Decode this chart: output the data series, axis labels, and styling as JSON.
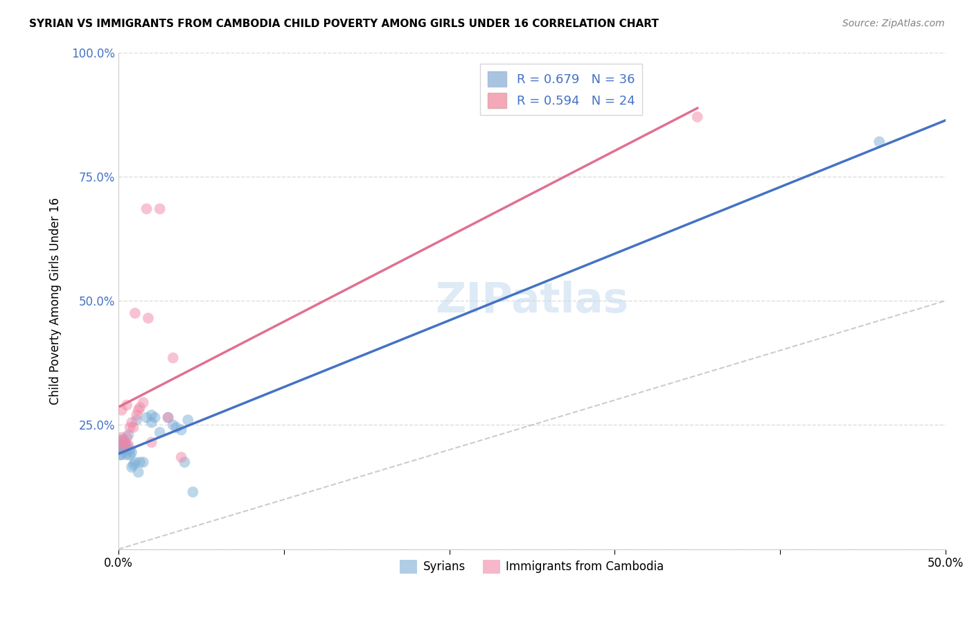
{
  "title": "SYRIAN VS IMMIGRANTS FROM CAMBODIA CHILD POVERTY AMONG GIRLS UNDER 16 CORRELATION CHART",
  "source": "Source: ZipAtlas.com",
  "ylabel": "Child Poverty Among Girls Under 16",
  "xlim": [
    0,
    0.5
  ],
  "ylim": [
    0,
    1.0
  ],
  "yticks": [
    0,
    0.25,
    0.5,
    0.75,
    1.0
  ],
  "ytick_labels": [
    "",
    "25.0%",
    "50.0%",
    "75.0%",
    "100.0%"
  ],
  "xticks": [
    0,
    0.1,
    0.2,
    0.3,
    0.4,
    0.5
  ],
  "xtick_labels": [
    "0.0%",
    "",
    "",
    "",
    "",
    "50.0%"
  ],
  "legend1_label_r": "R = 0.679",
  "legend1_label_n": "N = 36",
  "legend2_label_r": "R = 0.594",
  "legend2_label_n": "N = 24",
  "legend1_color": "#a8c4e0",
  "legend2_color": "#f4a8b8",
  "line1_color": "#4472c4",
  "line2_color": "#e07090",
  "scatter1_color": "#7aaed6",
  "scatter2_color": "#f088a8",
  "syrians_x": [
    0.001,
    0.001,
    0.001,
    0.002,
    0.002,
    0.002,
    0.003,
    0.003,
    0.004,
    0.004,
    0.005,
    0.005,
    0.006,
    0.007,
    0.007,
    0.008,
    0.008,
    0.009,
    0.01,
    0.011,
    0.012,
    0.013,
    0.015,
    0.017,
    0.02,
    0.02,
    0.022,
    0.025,
    0.03,
    0.033,
    0.035,
    0.038,
    0.04,
    0.042,
    0.045,
    0.46
  ],
  "syrians_y": [
    0.2,
    0.19,
    0.21,
    0.21,
    0.19,
    0.22,
    0.2,
    0.22,
    0.21,
    0.21,
    0.21,
    0.19,
    0.23,
    0.2,
    0.19,
    0.165,
    0.195,
    0.17,
    0.175,
    0.26,
    0.155,
    0.175,
    0.175,
    0.265,
    0.255,
    0.27,
    0.265,
    0.235,
    0.265,
    0.25,
    0.245,
    0.24,
    0.175,
    0.26,
    0.115,
    0.82
  ],
  "cambodia_x": [
    0.001,
    0.002,
    0.002,
    0.003,
    0.004,
    0.005,
    0.005,
    0.006,
    0.007,
    0.008,
    0.009,
    0.01,
    0.011,
    0.012,
    0.013,
    0.015,
    0.017,
    0.018,
    0.02,
    0.025,
    0.03,
    0.033,
    0.038,
    0.35
  ],
  "cambodia_y": [
    0.215,
    0.225,
    0.28,
    0.205,
    0.215,
    0.225,
    0.29,
    0.21,
    0.245,
    0.255,
    0.245,
    0.475,
    0.27,
    0.28,
    0.285,
    0.295,
    0.685,
    0.465,
    0.215,
    0.685,
    0.265,
    0.385,
    0.185,
    0.87
  ],
  "background_color": "#ffffff",
  "grid_color": "#dddddd",
  "watermark_color": "#c8ddf0",
  "tick_color": "#4472c4",
  "spine_color": "#cccccc"
}
